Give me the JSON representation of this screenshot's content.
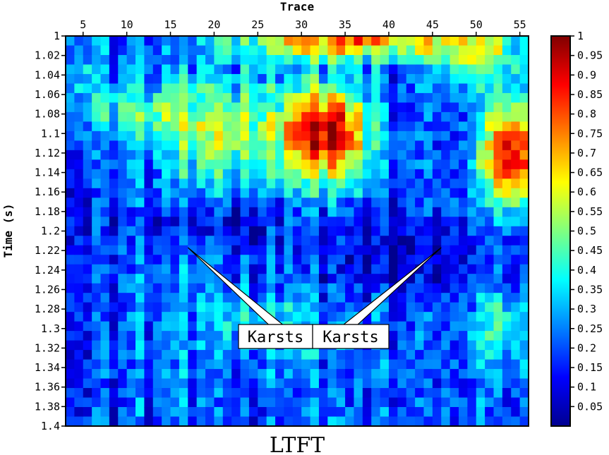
{
  "chart_data": {
    "type": "heatmap",
    "title": "LTFT",
    "xlabel": "Trace",
    "ylabel": "Time (s)",
    "x_ticks": [
      5,
      10,
      15,
      20,
      25,
      30,
      35,
      40,
      45,
      50,
      55
    ],
    "xlim": [
      3,
      56
    ],
    "y_ticks": [
      1,
      1.02,
      1.04,
      1.06,
      1.08,
      1.1,
      1.12,
      1.14,
      1.16,
      1.18,
      1.2,
      1.22,
      1.24,
      1.26,
      1.28,
      1.3,
      1.32,
      1.34,
      1.36,
      1.38,
      1.4
    ],
    "ylim": [
      1.4,
      1.0
    ],
    "colorbar_ticks": [
      1,
      0.95,
      0.9,
      0.85,
      0.8,
      0.75,
      0.7,
      0.65,
      0.6,
      0.55,
      0.5,
      0.45,
      0.4,
      0.35,
      0.3,
      0.25,
      0.2,
      0.15,
      0.1,
      0.05
    ],
    "colorbar_range": [
      0,
      1
    ],
    "colormap": "jet",
    "annotations": [
      {
        "text": "Karsts",
        "trace": 17,
        "time": 1.217
      },
      {
        "text": "Karsts",
        "trace": 46,
        "time": 1.217
      }
    ],
    "grid": false
  }
}
